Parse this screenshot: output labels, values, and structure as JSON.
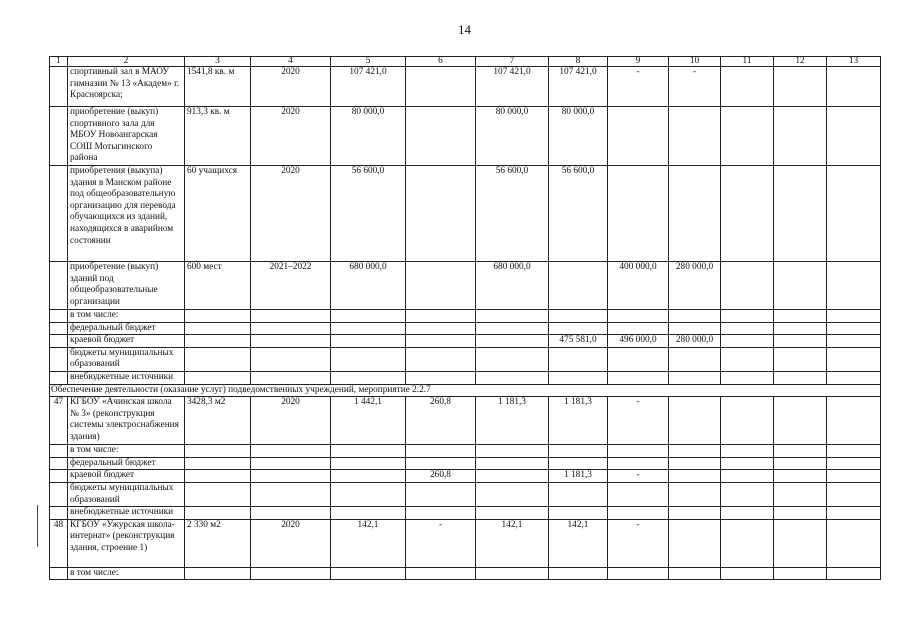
{
  "page_number": "14",
  "table": {
    "headers": [
      "1",
      "2",
      "3",
      "4",
      "5",
      "6",
      "7",
      "8",
      "9",
      "10",
      "11",
      "12",
      "13"
    ],
    "rows": [
      {
        "type": "row",
        "cells": [
          "",
          "спортивный зал в МАОУ гимназии № 13 «Академ» г. Красноярска;",
          "1541,8 кв. м",
          "2020",
          "107 421,0",
          "",
          "107 421,0",
          "107 421,0",
          "-",
          "-",
          "",
          "",
          ""
        ]
      },
      {
        "type": "row",
        "cells": [
          "",
          "приобретение (выкуп) спортивного зала для МБОУ Новоангарская СОШ Мотыгинского района",
          "913,3 кв. м",
          "2020",
          "80 000,0",
          "",
          "80 000,0",
          "80 000,0",
          "",
          "",
          "",
          "",
          ""
        ]
      },
      {
        "type": "row",
        "cells": [
          "",
          "приобретения (выкупа) здания в Манском районе под общеобразовательную организацию для перевода обучающихся из зданий, находящихся в аварийном состоянии",
          "60 учащихся",
          "2020",
          "56 600,0",
          "",
          "56 600,0",
          "56 600,0",
          "",
          "",
          "",
          "",
          ""
        ]
      },
      {
        "type": "row",
        "cells": [
          "",
          "приобретение (выкуп) зданий под общеобразовательные организации",
          "600 мест",
          "2021–2022",
          "680 000,0",
          "",
          "680 000,0",
          "",
          "400 000,0",
          "280 000,0",
          "",
          "",
          ""
        ]
      },
      {
        "type": "row",
        "cells": [
          "",
          "в том числе:",
          "",
          "",
          "",
          "",
          "",
          "",
          "",
          "",
          "",
          "",
          ""
        ]
      },
      {
        "type": "row",
        "cells": [
          "",
          "федеральный бюджет",
          "",
          "",
          "",
          "",
          "",
          "",
          "",
          "",
          "",
          "",
          ""
        ]
      },
      {
        "type": "row",
        "cells": [
          "",
          "краевой бюджет",
          "",
          "",
          "",
          "",
          "",
          "475 581,0",
          "496 000,0",
          "280 000,0",
          "",
          "",
          ""
        ]
      },
      {
        "type": "row",
        "cells": [
          "",
          "бюджеты муниципальных образований",
          "",
          "",
          "",
          "",
          "",
          "",
          "",
          "",
          "",
          "",
          ""
        ]
      },
      {
        "type": "row",
        "cells": [
          "",
          "внебюджетные источники",
          "",
          "",
          "",
          "",
          "",
          "",
          "",
          "",
          "",
          "",
          ""
        ]
      },
      {
        "type": "section",
        "text": "Обеспечение деятельности (оказание услуг) подведомственных учреждений, мероприятие 2.2.7"
      },
      {
        "type": "row",
        "cells": [
          "47",
          "КГБОУ «Ачинская школа № 3» (реконструкция системы электроснабжения здания)",
          "3428,3 м2",
          "2020",
          "1 442,1",
          "260,8",
          "1 181,3",
          "1 181,3",
          "-",
          "",
          "",
          "",
          ""
        ]
      },
      {
        "type": "row",
        "cells": [
          "",
          "в том числе:",
          "",
          "",
          "",
          "",
          "",
          "",
          "",
          "",
          "",
          "",
          ""
        ]
      },
      {
        "type": "row",
        "cells": [
          "",
          "федеральный бюджет",
          "",
          "",
          "",
          "",
          "",
          "",
          "",
          "",
          "",
          "",
          ""
        ]
      },
      {
        "type": "row",
        "cells": [
          "",
          "краевой бюджет",
          "",
          "",
          "",
          "260,8",
          "",
          "1 181,3",
          "-",
          "",
          "",
          "",
          ""
        ]
      },
      {
        "type": "row",
        "cells": [
          "",
          "бюджеты муниципальных образований",
          "",
          "",
          "",
          "",
          "",
          "",
          "",
          "",
          "",
          "",
          ""
        ]
      },
      {
        "type": "row",
        "cells": [
          "",
          "внебюджетные источники",
          "",
          "",
          "",
          "",
          "",
          "",
          "",
          "",
          "",
          "",
          ""
        ]
      },
      {
        "type": "row",
        "cells": [
          "48",
          "КГБОУ «Ужурская школа-интернат» (реконструкция здания, строение 1)",
          "2 330 м2",
          "2020",
          "142,1",
          "-",
          "142,1",
          "142,1",
          "-",
          "",
          "",
          "",
          ""
        ]
      },
      {
        "type": "row",
        "cells": [
          "",
          "в том числе:",
          "",
          "",
          "",
          "",
          "",
          "",
          "",
          "",
          "",
          "",
          ""
        ]
      }
    ]
  }
}
